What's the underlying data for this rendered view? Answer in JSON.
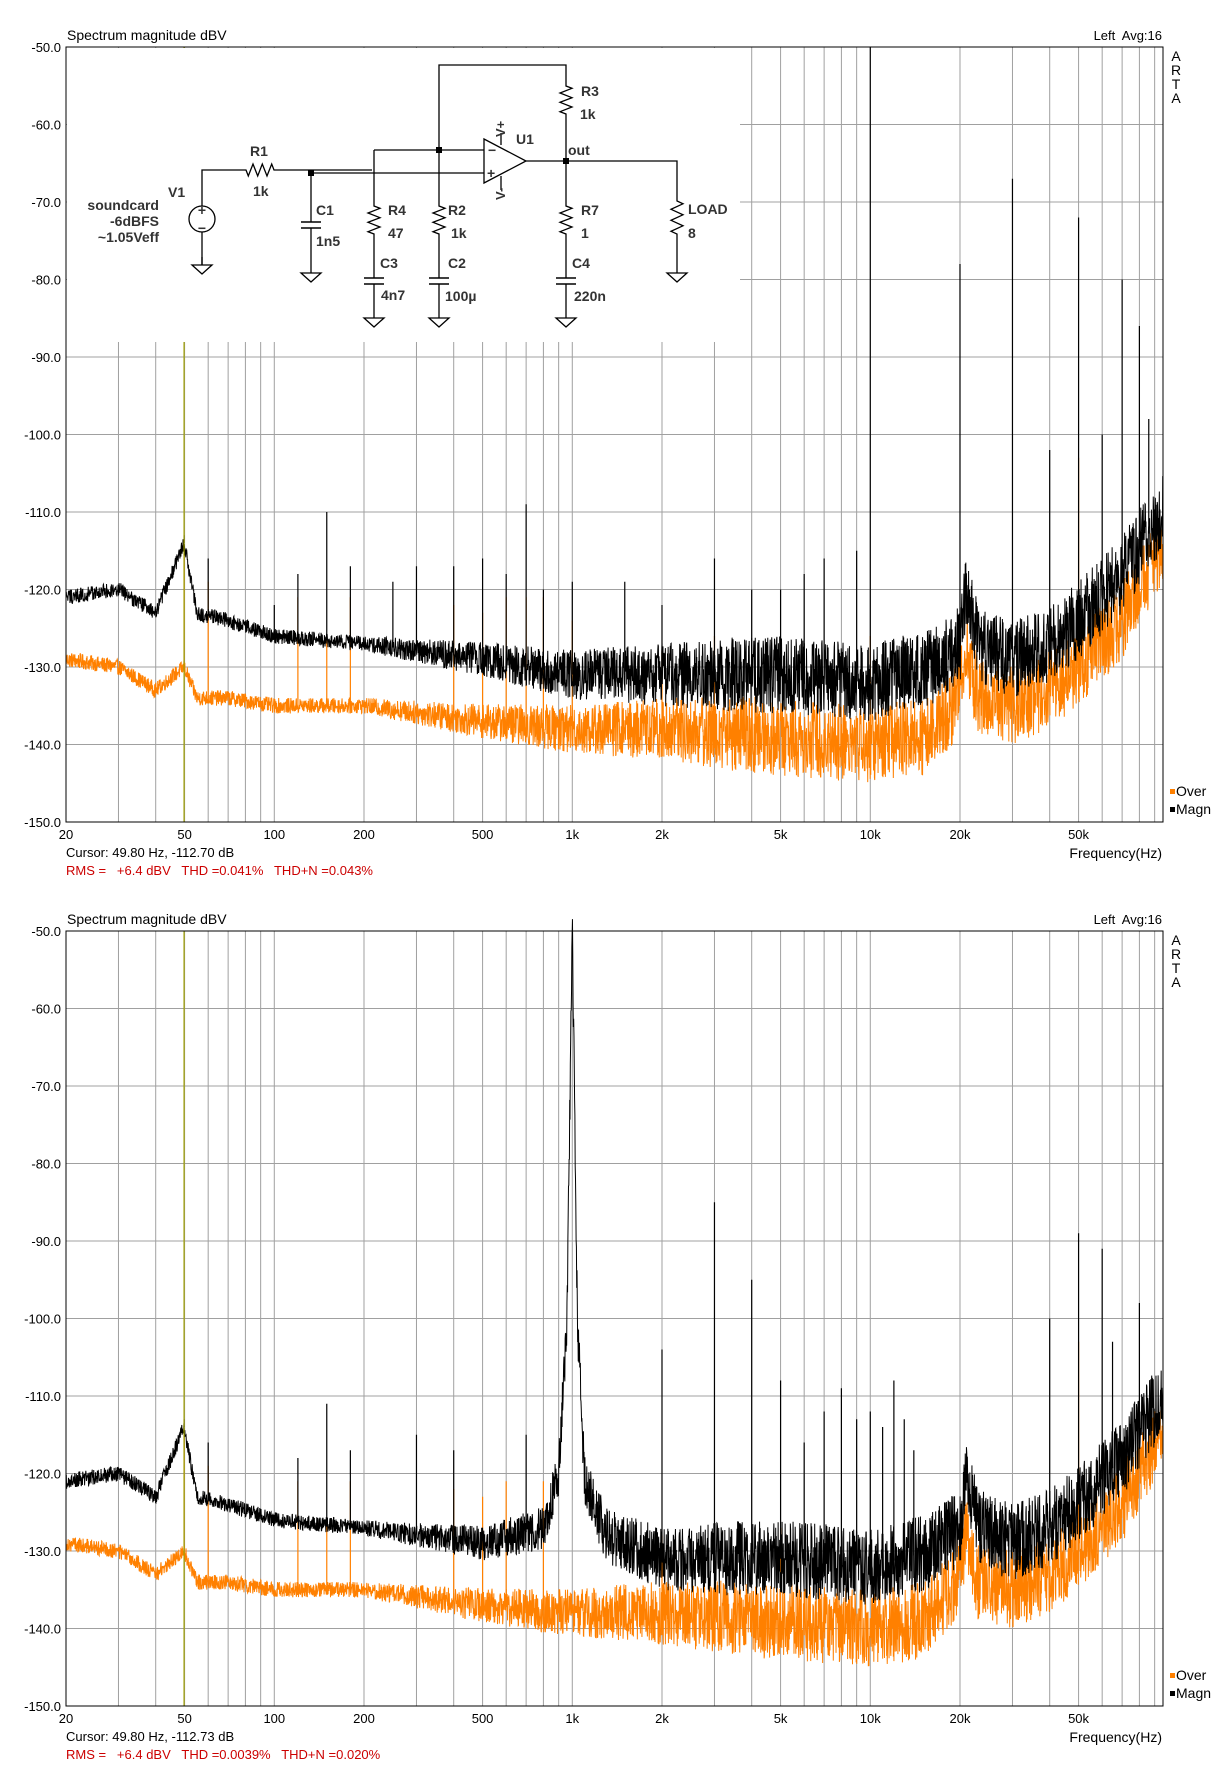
{
  "panels": [
    {
      "title": "Spectrum magnitude dBV",
      "channel_info": "Left  Avg:16",
      "brand": [
        "A",
        "R",
        "T",
        "A"
      ],
      "cursor_text": "Cursor: 49.80 Hz, -112.70 dB",
      "stats_text": "RMS =   +6.4 dBV   THD =0.041%   THD+N =0.043%",
      "xlabel": "Frequency(Hz)",
      "legend": [
        "Over",
        "Magn"
      ],
      "has_schematic": true
    },
    {
      "title": "Spectrum magnitude dBV",
      "channel_info": "Left  Avg:16",
      "brand": [
        "A",
        "R",
        "T",
        "A"
      ],
      "cursor_text": "Cursor: 49.80 Hz, -112.73 dB",
      "stats_text": "RMS =   +6.4 dBV   THD =0.0039%   THD+N =0.020%",
      "xlabel": "Frequency(Hz)",
      "legend": [
        "Over",
        "Magn"
      ],
      "has_schematic": false
    }
  ],
  "schematic": {
    "source_labels": [
      "soundcard",
      "-6dBFS",
      "~1.05Veff"
    ],
    "components": {
      "V1": "V1",
      "R1": [
        "R1",
        "1k"
      ],
      "C1": [
        "C1",
        "1n5"
      ],
      "R4": [
        "R4",
        "47"
      ],
      "C3": [
        "C3",
        "4n7"
      ],
      "R2": [
        "R2",
        "1k"
      ],
      "C2": [
        "C2",
        "100µ"
      ],
      "U1": "U1",
      "Vplus": "V+",
      "Vminus": "V-",
      "R3": [
        "R3",
        "1k"
      ],
      "out": "out",
      "R7": [
        "R7",
        "1"
      ],
      "C4": [
        "C4",
        "220n"
      ],
      "LOAD": [
        "LOAD",
        "8"
      ]
    }
  },
  "chart_data": [
    {
      "type": "line",
      "title": "Spectrum magnitude dBV",
      "xlabel": "Frequency(Hz)",
      "ylabel": "",
      "x_scale": "log",
      "xlim": [
        20,
        96000
      ],
      "ylim": [
        -150,
        -50
      ],
      "x_ticks": [
        {
          "v": 20,
          "label": "20"
        },
        {
          "v": 50,
          "label": "50"
        },
        {
          "v": 100,
          "label": "100"
        },
        {
          "v": 200,
          "label": "200"
        },
        {
          "v": 500,
          "label": "500"
        },
        {
          "v": 1000,
          "label": "1k"
        },
        {
          "v": 2000,
          "label": "2k"
        },
        {
          "v": 5000,
          "label": "5k"
        },
        {
          "v": 10000,
          "label": "10k"
        },
        {
          "v": 20000,
          "label": "20k"
        },
        {
          "v": 50000,
          "label": "50k"
        }
      ],
      "y_ticks": [
        {
          "v": -50,
          "label": "-50.0"
        },
        {
          "v": -60,
          "label": "-60.0"
        },
        {
          "v": -70,
          "label": "-70.0"
        },
        {
          "v": -80,
          "label": "-80.0"
        },
        {
          "v": -90,
          "label": "-90.0"
        },
        {
          "v": -100,
          "label": "-100.0"
        },
        {
          "v": -110,
          "label": "-110.0"
        },
        {
          "v": -120,
          "label": "-120.0"
        },
        {
          "v": -130,
          "label": "-130.0"
        },
        {
          "v": -140,
          "label": "-140.0"
        },
        {
          "v": -150,
          "label": "-150.0"
        }
      ],
      "grid": true,
      "cursor_x": 49.8,
      "colors": {
        "Magn": "#000000",
        "Over": "#ff8000",
        "cursor": "#a0a000",
        "grid": "#a0a0a0"
      },
      "series": [
        {
          "name": "Magn",
          "color": "#000000",
          "envelope": [
            [
              20,
              -121
            ],
            [
              30,
              -120
            ],
            [
              40,
              -123
            ],
            [
              49.8,
              -114
            ],
            [
              55,
              -123
            ],
            [
              70,
              -124
            ],
            [
              100,
              -126
            ],
            [
              200,
              -127
            ],
            [
              500,
              -129
            ],
            [
              700,
              -130
            ],
            [
              1000,
              -131
            ],
            [
              2000,
              -131
            ],
            [
              5000,
              -131
            ],
            [
              10000,
              -132
            ],
            [
              16000,
              -130
            ],
            [
              20000,
              -127
            ],
            [
              21000,
              -120
            ],
            [
              23000,
              -127
            ],
            [
              30000,
              -129
            ],
            [
              40000,
              -127
            ],
            [
              50000,
              -124
            ],
            [
              70000,
              -118
            ],
            [
              96000,
              -110
            ]
          ],
          "peaks": [
            [
              49.8,
              -113
            ],
            [
              60,
              -116
            ],
            [
              100,
              -122
            ],
            [
              120,
              -118
            ],
            [
              150,
              -110
            ],
            [
              180,
              -117
            ],
            [
              250,
              -119
            ],
            [
              300,
              -117
            ],
            [
              400,
              -117
            ],
            [
              500,
              -116
            ],
            [
              600,
              -118
            ],
            [
              700,
              -109
            ],
            [
              800,
              -120
            ],
            [
              1000,
              -119
            ],
            [
              1500,
              -119
            ],
            [
              2000,
              -122
            ],
            [
              3000,
              -116
            ],
            [
              4000,
              -120
            ],
            [
              5000,
              -120
            ],
            [
              6000,
              -118
            ],
            [
              7000,
              -116
            ],
            [
              9000,
              -115
            ],
            [
              10000,
              -50
            ],
            [
              20000,
              -78
            ],
            [
              30000,
              -67
            ],
            [
              40000,
              -102
            ],
            [
              50000,
              -72
            ],
            [
              60000,
              -100
            ],
            [
              70000,
              -80
            ],
            [
              80000,
              -86
            ],
            [
              86000,
              -98
            ]
          ]
        },
        {
          "name": "Over",
          "color": "#ff8000",
          "envelope": [
            [
              20,
              -129
            ],
            [
              30,
              -130
            ],
            [
              40,
              -133
            ],
            [
              49.8,
              -130
            ],
            [
              55,
              -134
            ],
            [
              70,
              -134
            ],
            [
              100,
              -135
            ],
            [
              200,
              -135
            ],
            [
              500,
              -137
            ],
            [
              1000,
              -138
            ],
            [
              2000,
              -138
            ],
            [
              5000,
              -139
            ],
            [
              10000,
              -140
            ],
            [
              15000,
              -139
            ],
            [
              19000,
              -135
            ],
            [
              21000,
              -128
            ],
            [
              23000,
              -134
            ],
            [
              30000,
              -135
            ],
            [
              40000,
              -133
            ],
            [
              50000,
              -130
            ],
            [
              70000,
              -124
            ],
            [
              96000,
              -114
            ]
          ],
          "peaks": [
            [
              49.8,
              -115
            ],
            [
              60,
              -119
            ],
            [
              120,
              -121
            ],
            [
              150,
              -126
            ],
            [
              180,
              -121
            ],
            [
              400,
              -122
            ],
            [
              500,
              -123
            ],
            [
              600,
              -121
            ],
            [
              700,
              -121
            ],
            [
              800,
              -121
            ],
            [
              1000,
              -124
            ],
            [
              2000,
              -128
            ],
            [
              3000,
              -126
            ],
            [
              10000,
              -126
            ],
            [
              50000,
              -103
            ]
          ]
        }
      ]
    },
    {
      "type": "line",
      "title": "Spectrum magnitude dBV",
      "xlabel": "Frequency(Hz)",
      "ylabel": "",
      "x_scale": "log",
      "xlim": [
        20,
        96000
      ],
      "ylim": [
        -150,
        -50
      ],
      "x_ticks": [
        {
          "v": 20,
          "label": "20"
        },
        {
          "v": 50,
          "label": "50"
        },
        {
          "v": 100,
          "label": "100"
        },
        {
          "v": 200,
          "label": "200"
        },
        {
          "v": 500,
          "label": "500"
        },
        {
          "v": 1000,
          "label": "1k"
        },
        {
          "v": 2000,
          "label": "2k"
        },
        {
          "v": 5000,
          "label": "5k"
        },
        {
          "v": 10000,
          "label": "10k"
        },
        {
          "v": 20000,
          "label": "20k"
        },
        {
          "v": 50000,
          "label": "50k"
        }
      ],
      "y_ticks": [
        {
          "v": -50,
          "label": "-50.0"
        },
        {
          "v": -60,
          "label": "-60.0"
        },
        {
          "v": -70,
          "label": "-70.0"
        },
        {
          "v": -80,
          "label": "-80.0"
        },
        {
          "v": -90,
          "label": "-90.0"
        },
        {
          "v": -100,
          "label": "-100.0"
        },
        {
          "v": -110,
          "label": "-110.0"
        },
        {
          "v": -120,
          "label": "-120.0"
        },
        {
          "v": -130,
          "label": "-130.0"
        },
        {
          "v": -140,
          "label": "-140.0"
        },
        {
          "v": -150,
          "label": "-150.0"
        }
      ],
      "grid": true,
      "cursor_x": 49.8,
      "colors": {
        "Magn": "#000000",
        "Over": "#ff8000",
        "cursor": "#a0a000",
        "grid": "#a0a0a0"
      },
      "series": [
        {
          "name": "Magn",
          "color": "#000000",
          "envelope": [
            [
              20,
              -121
            ],
            [
              30,
              -120
            ],
            [
              40,
              -123
            ],
            [
              49.8,
              -114
            ],
            [
              55,
              -123
            ],
            [
              70,
              -124
            ],
            [
              100,
              -126
            ],
            [
              200,
              -127
            ],
            [
              500,
              -129
            ],
            [
              800,
              -127
            ],
            [
              900,
              -120
            ],
            [
              960,
              -100
            ],
            [
              1000,
              -50
            ],
            [
              1040,
              -100
            ],
            [
              1100,
              -121
            ],
            [
              1300,
              -128
            ],
            [
              2000,
              -131
            ],
            [
              5000,
              -131
            ],
            [
              10000,
              -132
            ],
            [
              16000,
              -130
            ],
            [
              20000,
              -127
            ],
            [
              21000,
              -120
            ],
            [
              23000,
              -127
            ],
            [
              30000,
              -129
            ],
            [
              40000,
              -127
            ],
            [
              50000,
              -124
            ],
            [
              70000,
              -118
            ],
            [
              96000,
              -110
            ]
          ],
          "peaks": [
            [
              49.8,
              -113
            ],
            [
              60,
              -116
            ],
            [
              120,
              -118
            ],
            [
              150,
              -111
            ],
            [
              180,
              -117
            ],
            [
              300,
              -115
            ],
            [
              400,
              -117
            ],
            [
              700,
              -115
            ],
            [
              2000,
              -104
            ],
            [
              3000,
              -85
            ],
            [
              4000,
              -95
            ],
            [
              5000,
              -108
            ],
            [
              6000,
              -116
            ],
            [
              7000,
              -112
            ],
            [
              8000,
              -109
            ],
            [
              9000,
              -113
            ],
            [
              10000,
              -112
            ],
            [
              11000,
              -114
            ],
            [
              12000,
              -108
            ],
            [
              13000,
              -113
            ],
            [
              14000,
              -117
            ],
            [
              40000,
              -100
            ],
            [
              50000,
              -89
            ],
            [
              60000,
              -91
            ],
            [
              65000,
              -103
            ],
            [
              80000,
              -98
            ]
          ]
        },
        {
          "name": "Over",
          "color": "#ff8000",
          "envelope": [
            [
              20,
              -129
            ],
            [
              30,
              -130
            ],
            [
              40,
              -133
            ],
            [
              49.8,
              -130
            ],
            [
              55,
              -134
            ],
            [
              70,
              -134
            ],
            [
              100,
              -135
            ],
            [
              200,
              -135
            ],
            [
              500,
              -137
            ],
            [
              1000,
              -138
            ],
            [
              2000,
              -138
            ],
            [
              5000,
              -139
            ],
            [
              10000,
              -140
            ],
            [
              15000,
              -139
            ],
            [
              19000,
              -135
            ],
            [
              21000,
              -128
            ],
            [
              23000,
              -134
            ],
            [
              30000,
              -135
            ],
            [
              40000,
              -133
            ],
            [
              50000,
              -130
            ],
            [
              70000,
              -124
            ],
            [
              96000,
              -114
            ]
          ],
          "peaks": [
            [
              49.8,
              -115
            ],
            [
              60,
              -119
            ],
            [
              120,
              -121
            ],
            [
              150,
              -126
            ],
            [
              180,
              -121
            ],
            [
              400,
              -122
            ],
            [
              500,
              -123
            ],
            [
              600,
              -121
            ],
            [
              800,
              -121
            ],
            [
              2000,
              -128
            ],
            [
              5000,
              -127
            ],
            [
              50000,
              -103
            ]
          ]
        }
      ]
    }
  ]
}
